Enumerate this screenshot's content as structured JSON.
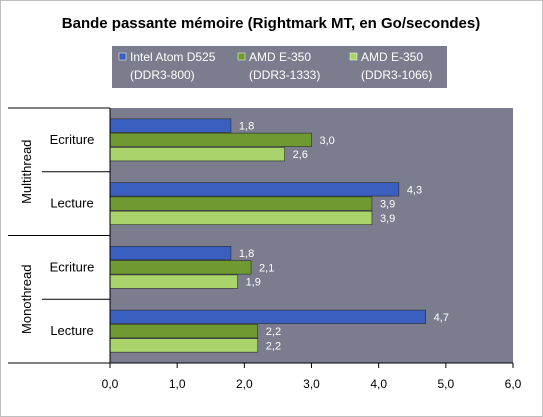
{
  "chart_data": {
    "type": "bar",
    "orientation": "horizontal",
    "title": "Bande passante mémoire (Rightmark MT, en Go/secondes)",
    "groups": [
      {
        "name": "Multithread",
        "categories": [
          {
            "label": "Ecriture",
            "values": [
              1.8,
              3.0,
              2.6
            ],
            "labels": [
              "1,8",
              "3,0",
              "2,6"
            ]
          },
          {
            "label": "Lecture",
            "values": [
              4.3,
              3.9,
              3.9
            ],
            "labels": [
              "4,3",
              "3,9",
              "3,9"
            ]
          }
        ]
      },
      {
        "name": "Monothread",
        "categories": [
          {
            "label": "Ecriture",
            "values": [
              1.8,
              2.1,
              1.9
            ],
            "labels": [
              "1,8",
              "2,1",
              "1,9"
            ]
          },
          {
            "label": "Lecture",
            "values": [
              4.7,
              2.2,
              2.2
            ],
            "labels": [
              "4,7",
              "2,2",
              "2,2"
            ]
          }
        ]
      }
    ],
    "series": [
      {
        "name": "Intel Atom D525",
        "sub": "(DDR3-800)",
        "color": "#3a5fbf"
      },
      {
        "name": "AMD E-350",
        "sub": "(DDR3-1333)",
        "color": "#6f9a32"
      },
      {
        "name": "AMD E-350",
        "sub": "(DDR3-1066)",
        "color": "#a8d46b"
      }
    ],
    "xlim": [
      0,
      6
    ],
    "xticks": [
      "0,0",
      "1,0",
      "2,0",
      "3,0",
      "4,0",
      "5,0",
      "6,0"
    ],
    "grid": false,
    "legend_position": "top",
    "plot_background": "#7b7c8e",
    "legend_background": "#7b7c8e"
  }
}
